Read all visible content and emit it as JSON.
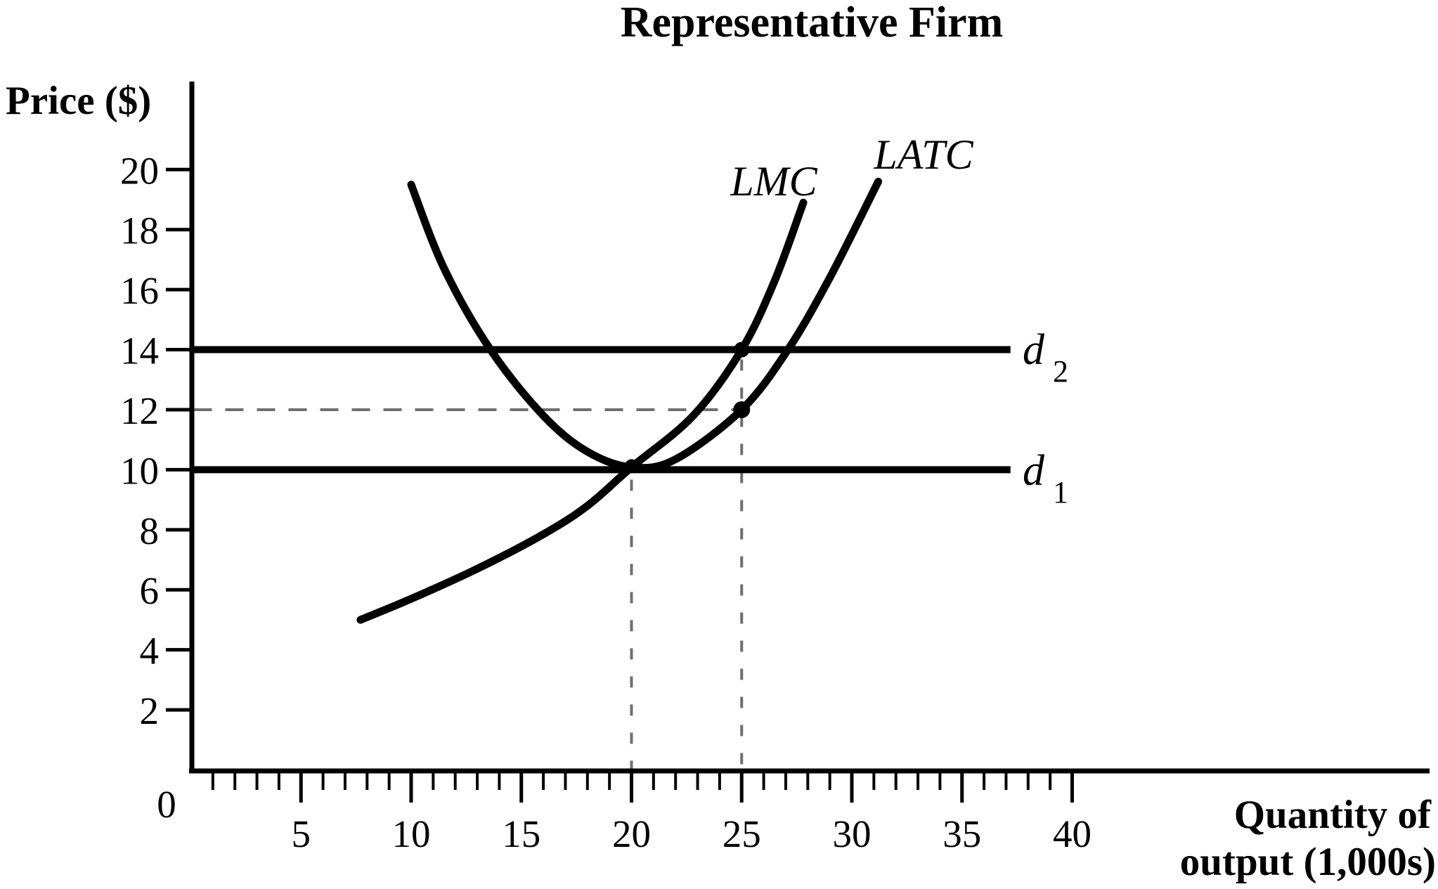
{
  "title": "Representative Firm",
  "origin_label": "0",
  "chart_data": {
    "type": "line",
    "title": "Representative Firm",
    "xlabel": "Quantity of output (1,000s)",
    "xlabel_line1": "Quantity of",
    "xlabel_line2": "output (1,000s)",
    "ylabel": "Price ($)",
    "xlim": [
      0,
      40
    ],
    "ylim": [
      0,
      20
    ],
    "grid": false,
    "axes": {
      "x": {
        "ticks_major": [
          5,
          10,
          15,
          20,
          25,
          30,
          35,
          40
        ],
        "minor_step": 1,
        "minor_range": [
          1,
          40
        ]
      },
      "y": {
        "ticks": [
          2,
          4,
          6,
          8,
          10,
          12,
          14,
          16,
          18,
          20
        ]
      }
    },
    "series": [
      {
        "name": "LMC",
        "kind": "curve",
        "label": "LMC",
        "points": [
          [
            7.7,
            5.0
          ],
          [
            10,
            5.7
          ],
          [
            13,
            6.7
          ],
          [
            16,
            7.85
          ],
          [
            18,
            8.8
          ],
          [
            20,
            10.0
          ],
          [
            22.8,
            11.8
          ],
          [
            25,
            14.0
          ],
          [
            26.5,
            16.3
          ],
          [
            27.8,
            18.9
          ]
        ]
      },
      {
        "name": "LATC",
        "kind": "curve",
        "label": "LATC",
        "points": [
          [
            10,
            19.5
          ],
          [
            11.5,
            16.7
          ],
          [
            13.6,
            14.0
          ],
          [
            16,
            11.8
          ],
          [
            18,
            10.6
          ],
          [
            20,
            10.0
          ],
          [
            22,
            10.35
          ],
          [
            25,
            12.0
          ],
          [
            27.1,
            14.0
          ],
          [
            29,
            16.4
          ],
          [
            31.2,
            19.6
          ]
        ]
      },
      {
        "name": "d2",
        "kind": "demand-line",
        "price": 14,
        "q_start": 0,
        "q_end": 37.2,
        "label_base": "d",
        "label_sub": "2"
      },
      {
        "name": "d1",
        "kind": "demand-line",
        "price": 10,
        "q_start": 0,
        "q_end": 37.2,
        "label_base": "d",
        "label_sub": "1"
      }
    ],
    "markers": [
      {
        "q": 20,
        "p": 10
      },
      {
        "q": 25,
        "p": 14
      },
      {
        "q": 25,
        "p": 12
      }
    ],
    "dashed_guides": [
      {
        "orientation": "horizontal",
        "price": 12,
        "q_from": 0,
        "q_to": 25
      },
      {
        "orientation": "vertical",
        "quantity": 20,
        "price_from": 10,
        "price_to": 0
      },
      {
        "orientation": "vertical",
        "quantity": 25,
        "price_from": 14,
        "price_to": 0
      }
    ],
    "colors": {
      "curves": "#000000",
      "demand_lines": "#000000",
      "dashed_guides": "#6f6f6f",
      "text": "#000000",
      "background": "#ffffff"
    },
    "legend": "none"
  }
}
